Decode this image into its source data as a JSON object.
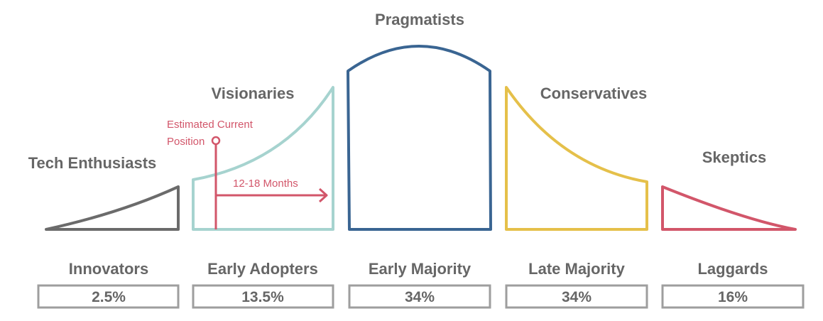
{
  "colors": {
    "innovators": "#6b6b6b",
    "early_adopters": "#a6d3cf",
    "early_majority": "#3a6592",
    "late_majority": "#e5c04a",
    "laggards": "#d2566a",
    "marker": "#d2566a",
    "text": "#666666",
    "box_border": "#9e9e9e"
  },
  "segments": [
    {
      "heading": "Tech Enthusiasts",
      "category": "Innovators",
      "percent": "2.5%"
    },
    {
      "heading": "Visionaries",
      "category": "Early Adopters",
      "percent": "13.5%"
    },
    {
      "heading": "Pragmatists",
      "category": "Early Majority",
      "percent": "34%"
    },
    {
      "heading": "Conservatives",
      "category": "Late Majority",
      "percent": "34%"
    },
    {
      "heading": "Skeptics",
      "category": "Laggards",
      "percent": "16%"
    }
  ],
  "marker": {
    "label_line1": "Estimated Current",
    "label_line2": "Position",
    "range_label": "12-18 Months"
  }
}
